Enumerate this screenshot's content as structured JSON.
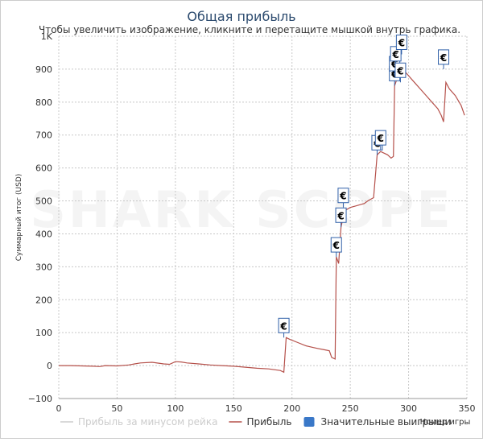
{
  "chart_data": {
    "type": "line",
    "title": "Общая прибыль",
    "subtitle": "Чтобы увеличить изображение, кликните и перетащите мышкой внутрь графика.",
    "xlabel": "Номер игры",
    "ylabel": "Суммарный итог (USD)",
    "xlim": [
      0,
      350
    ],
    "ylim": [
      -100,
      1000
    ],
    "x_ticks": [
      "0",
      "50",
      "100",
      "150",
      "200",
      "250",
      "300",
      "350"
    ],
    "y_ticks": [
      "−100",
      "0",
      "100",
      "200",
      "300",
      "400",
      "500",
      "600",
      "700",
      "800",
      "900",
      "1K"
    ],
    "grid": true,
    "watermark": "SHARK SCOPE",
    "colors": {
      "profit": "#b5504a",
      "rake": "#cccccc",
      "flag": "#3060a8",
      "title": "#2b4a6e"
    },
    "legend": {
      "position": "bottom",
      "items": [
        {
          "label": "Прибыль за минусом рейка",
          "color": "#cccccc",
          "kind": "line"
        },
        {
          "label": "Прибыль",
          "color": "#b5504a",
          "kind": "line"
        },
        {
          "label": "Значительные выигрыши",
          "color": "#3a78c8",
          "kind": "box"
        }
      ]
    },
    "series": [
      {
        "name": "Прибыль",
        "points": [
          [
            0,
            0
          ],
          [
            10,
            0
          ],
          [
            20,
            -1
          ],
          [
            30,
            -2
          ],
          [
            35,
            -3
          ],
          [
            40,
            0
          ],
          [
            50,
            -1
          ],
          [
            60,
            2
          ],
          [
            65,
            5
          ],
          [
            70,
            8
          ],
          [
            80,
            10
          ],
          [
            90,
            5
          ],
          [
            95,
            4
          ],
          [
            100,
            12
          ],
          [
            105,
            11
          ],
          [
            110,
            8
          ],
          [
            120,
            5
          ],
          [
            130,
            2
          ],
          [
            140,
            0
          ],
          [
            150,
            -2
          ],
          [
            160,
            -5
          ],
          [
            170,
            -8
          ],
          [
            180,
            -10
          ],
          [
            190,
            -15
          ],
          [
            193,
            -20
          ],
          [
            195,
            85
          ],
          [
            198,
            80
          ],
          [
            205,
            70
          ],
          [
            212,
            60
          ],
          [
            218,
            55
          ],
          [
            222,
            52
          ],
          [
            228,
            48
          ],
          [
            232,
            45
          ],
          [
            234,
            25
          ],
          [
            237,
            20
          ],
          [
            238,
            330
          ],
          [
            240,
            310
          ],
          [
            242,
            420
          ],
          [
            245,
            470
          ],
          [
            250,
            480
          ],
          [
            255,
            485
          ],
          [
            260,
            490
          ],
          [
            262,
            492
          ],
          [
            265,
            500
          ],
          [
            270,
            510
          ],
          [
            273,
            640
          ],
          [
            276,
            650
          ],
          [
            282,
            640
          ],
          [
            285,
            630
          ],
          [
            287,
            635
          ],
          [
            288,
            850
          ],
          [
            290,
            870
          ],
          [
            292,
            880
          ],
          [
            295,
            900
          ],
          [
            300,
            880
          ],
          [
            305,
            860
          ],
          [
            310,
            840
          ],
          [
            315,
            820
          ],
          [
            320,
            800
          ],
          [
            325,
            780
          ],
          [
            328,
            760
          ],
          [
            330,
            740
          ],
          [
            332,
            860
          ],
          [
            335,
            840
          ],
          [
            340,
            820
          ],
          [
            345,
            790
          ],
          [
            348,
            760
          ]
        ]
      }
    ],
    "big_wins": [
      {
        "x": 193,
        "y": 85,
        "symbol": "€"
      },
      {
        "x": 238,
        "y": 330,
        "symbol": "€"
      },
      {
        "x": 242,
        "y": 420,
        "symbol": "€"
      },
      {
        "x": 244,
        "y": 480,
        "symbol": "€"
      },
      {
        "x": 273,
        "y": 640,
        "symbol": "€"
      },
      {
        "x": 276,
        "y": 655,
        "symbol": "€"
      },
      {
        "x": 288,
        "y": 850,
        "symbol": "€"
      },
      {
        "x": 288,
        "y": 880,
        "symbol": "€"
      },
      {
        "x": 289,
        "y": 910,
        "symbol": "€"
      },
      {
        "x": 293,
        "y": 860,
        "symbol": "€"
      },
      {
        "x": 294,
        "y": 945,
        "symbol": "€"
      },
      {
        "x": 330,
        "y": 900,
        "symbol": "€"
      }
    ]
  }
}
